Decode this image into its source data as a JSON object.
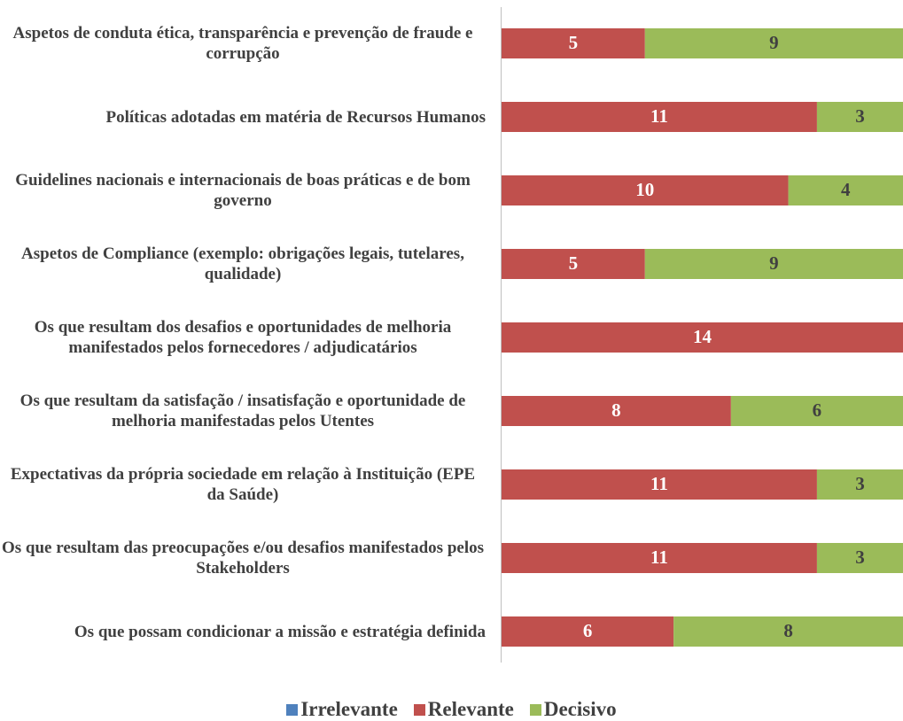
{
  "chart_data": {
    "type": "stacked_barh",
    "categories": [
      "Aspetos de conduta ética, transparência e prevenção de fraude e corrupção",
      "Políticas adotadas em matéria de Recursos Humanos",
      "Guidelines nacionais e internacionais de boas práticas e de bom governo",
      "Aspetos de Compliance (exemplo: obrigações legais, tutelares, qualidade)",
      "Os que resultam dos desafios e oportunidades de melhoria manifestados pelos fornecedores / adjudicatários",
      "Os que resultam da satisfação / insatisfação e oportunidade de melhoria manifestadas pelos Utentes",
      "Expectativas da própria sociedade em relação à Instituição (EPE da Saúde)",
      "Os que resultam das preocupações e/ou desafios manifestados pelos Stakeholders",
      "Os que possam condicionar a missão e estratégia definida"
    ],
    "series": [
      {
        "name": "Irrelevante",
        "color": "#4f81bd",
        "values": [
          0,
          0,
          0,
          0,
          0,
          0,
          0,
          0,
          0
        ]
      },
      {
        "name": "Relevante",
        "color": "#c0504d",
        "values": [
          5,
          11,
          10,
          5,
          14,
          8,
          11,
          11,
          6
        ]
      },
      {
        "name": "Decisivo",
        "color": "#9bbb59",
        "values": [
          9,
          3,
          4,
          9,
          0,
          6,
          3,
          3,
          8
        ]
      }
    ],
    "xlim": [
      0,
      14
    ],
    "legend": "bottom"
  }
}
